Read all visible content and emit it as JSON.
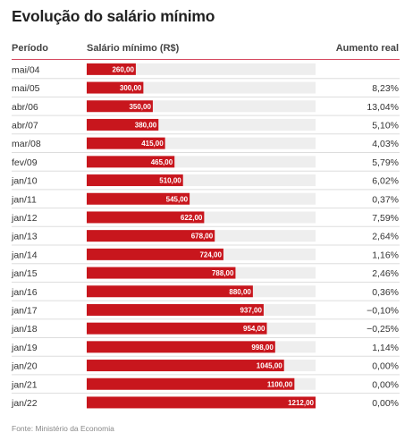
{
  "title": "Evolução do salário mínimo",
  "headers": {
    "period": "Período",
    "salary": "Salário mínimo (R$)",
    "raise": "Aumento real"
  },
  "source": "Fonte: Ministério da Economia",
  "colors": {
    "bar": "#c8161d",
    "track": "#eeeeee",
    "divider": "#dddddd"
  },
  "chart_data": {
    "type": "bar",
    "orientation": "horizontal",
    "xlim": [
      0,
      1212
    ],
    "categories": [
      "mai/04",
      "mai/05",
      "abr/06",
      "abr/07",
      "mar/08",
      "fev/09",
      "jan/10",
      "jan/11",
      "jan/12",
      "jan/13",
      "jan/14",
      "jan/15",
      "jan/16",
      "jan/17",
      "jan/18",
      "jan/19",
      "jan/20",
      "jan/21",
      "jan/22"
    ],
    "series": [
      {
        "values": [
          260,
          300,
          350,
          380,
          415,
          465,
          510,
          545,
          622,
          678,
          724,
          788,
          880,
          937,
          954,
          998,
          1045,
          1100,
          1212
        ]
      }
    ],
    "value_labels": [
      "260,00",
      "300,00",
      "350,00",
      "380,00",
      "415,00",
      "465,00",
      "510,00",
      "545,00",
      "622,00",
      "678,00",
      "724,00",
      "788,00",
      "880,00",
      "937,00",
      "954,00",
      "998,00",
      "1045,00",
      "1100,00",
      "1212,00"
    ],
    "real_raise": [
      "",
      "8,23%",
      "13,04%",
      "5,10%",
      "4,03%",
      "5,79%",
      "6,02%",
      "0,37%",
      "7,59%",
      "2,64%",
      "1,16%",
      "2,46%",
      "0,36%",
      "−0,10%",
      "−0,25%",
      "1,14%",
      "0,00%",
      "0,00%",
      "0,00%"
    ]
  }
}
